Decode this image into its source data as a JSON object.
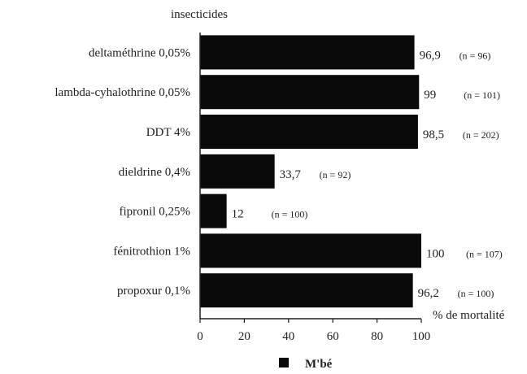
{
  "chart_data": {
    "type": "bar",
    "orientation": "horizontal",
    "title": "insecticides",
    "xlabel": "% de mortalité",
    "categories": [
      "deltaméthrine 0,05%",
      "lambda-cyhalothrine 0,05%",
      "DDT 4%",
      "dieldrine 0,4%",
      "fipronil 0,25%",
      "fénitrothion 1%",
      "propoxur 0,1%"
    ],
    "series": [
      {
        "name": "M'bé",
        "values": [
          96.9,
          99,
          98.5,
          33.7,
          12,
          100,
          96.2
        ],
        "value_labels": [
          "96,9",
          "99",
          "98,5",
          "33,7",
          "12",
          "100",
          "96,2"
        ],
        "n_labels": [
          "(n = 96)",
          "(n = 101)",
          "(n = 202)",
          "(n = 92)",
          "(n = 100)",
          "(n = 107)",
          "(n = 100)"
        ]
      }
    ],
    "xlim": [
      0,
      100
    ],
    "xticks": [
      "0",
      "20",
      "40",
      "60",
      "80",
      "100"
    ],
    "grid": false,
    "legend_position": "bottom",
    "bar_color": "#0a0a0a"
  }
}
